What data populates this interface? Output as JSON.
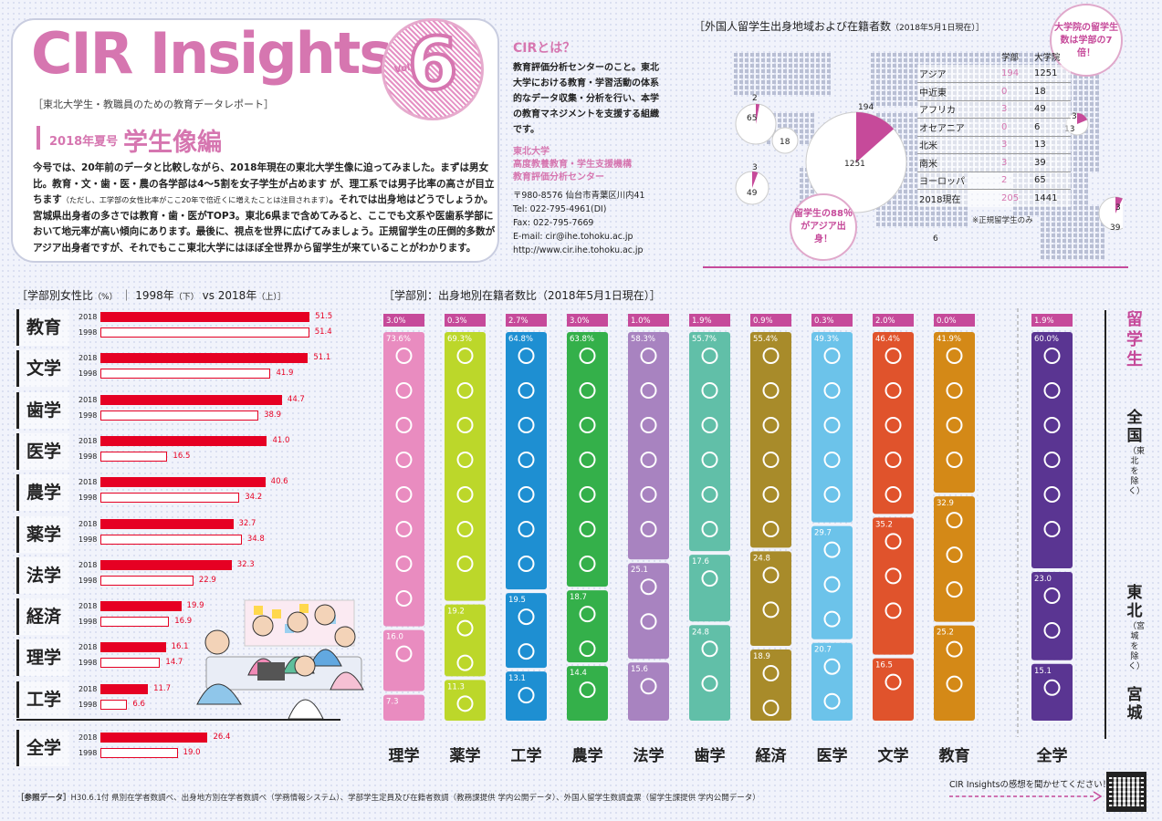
{
  "header": {
    "logo": "CIR Insights",
    "vol_label": "Vol.",
    "vol_number": "6",
    "subtitle": "［東北大学生・教職員のための教育データレポート］",
    "issue_label": "2018年夏号",
    "issue_title": "学生像編",
    "intro_1": "今号では、20年前のデータと比較しながら、2018年現在の東北大学生像に迫ってみました。まずは男女比。教育・文・歯・医・農の各学部は4〜5割を女子学生が占めます が、理工系では男子比率の高さが目立ちます",
    "intro_note": "（ただし、工学部の女性比率がここ20年で倍近くに増えたことは注目されます）",
    "intro_2": "。それでは出身地はどうでしょうか。宮城県出身者の多さでは教育・歯・医がTOP3。東北6県まで含めてみると、ここでも文系や医歯系学部において地元率が高い傾向にあります。最後に、視点を世界に広げてみましょう。正規留学生の圧倒的多数がアジア出身者ですが、それでもここ東北大学にはほぼ全世界から留学生が来ていることがわかります。"
  },
  "cir": {
    "title": "CIRとは？",
    "desc": "教育評価分析センターのこと。東北大学における教育・学習活動の体系的なデータ収集・分析を行い、本学の教育マネジメントを支援する組織です。",
    "org_1": "東北大学",
    "org_2": "高度教養教育・学生支援機構",
    "org_3": "教育評価分析センター",
    "address": "〒980-8576 仙台市青葉区川内41",
    "tel": "Tel: 022-795-4961(DI)",
    "fax": "Fax: 022-795-7669",
    "email": "E-mail: cir@ihe.tohoku.ac.jp",
    "url": "http://www.cir.ihe.tohoku.ac.jp"
  },
  "map": {
    "title": "［外国人留学生出身地域および在籍者数",
    "title_date": "（2018年5月1日現在）］",
    "col_undergrad": "学部",
    "col_grad": "大学院",
    "rows": [
      {
        "region": "アジア",
        "undergrad": "194",
        "grad": "1251"
      },
      {
        "region": "中近東",
        "undergrad": "0",
        "grad": "18"
      },
      {
        "region": "アフリカ",
        "undergrad": "3",
        "grad": "49"
      },
      {
        "region": "オセアニア",
        "undergrad": "0",
        "grad": "6"
      },
      {
        "region": "北米",
        "undergrad": "3",
        "grad": "13"
      },
      {
        "region": "南米",
        "undergrad": "3",
        "grad": "39"
      },
      {
        "region": "ヨーロッパ",
        "undergrad": "2",
        "grad": "65"
      },
      {
        "region": "2018現在",
        "undergrad": "205",
        "grad": "1441"
      }
    ],
    "note": "※正規留学生のみ",
    "bubble_grad": "大学院の留学生数は学部の7倍！",
    "bubble_asia": "留学生の88％がアジア出身！",
    "pie_labels": {
      "europe_u": "2",
      "europe_g": "65",
      "mideast_g": "18",
      "africa_u": "3",
      "africa_g": "49",
      "asia_u": "194",
      "asia_g": "1251",
      "oceania_g": "6",
      "namerica_u": "3",
      "namerica_g": "13",
      "samerica_u": "3",
      "samerica_g": "39"
    },
    "colors": {
      "undergrad": "#c64a9a",
      "grad": "#ffffff",
      "dots": "#b9bfd4"
    }
  },
  "female": {
    "title": "［学部別女性比",
    "title_unit": "（%）",
    "title_2": "｜ 1998年",
    "title_2_note": "（下）",
    "title_3": "vs 2018年",
    "title_3_note": "（上）］",
    "year_new": "2018",
    "year_old": "1998",
    "rows": [
      {
        "name": "教育",
        "v2018": 51.5,
        "v1998": 51.4
      },
      {
        "name": "文学",
        "v2018": 51.1,
        "v1998": 41.9
      },
      {
        "name": "歯学",
        "v2018": 44.7,
        "v1998": 38.9
      },
      {
        "name": "医学",
        "v2018": 41.0,
        "v1998": 16.5
      },
      {
        "name": "農学",
        "v2018": 40.6,
        "v1998": 34.2
      },
      {
        "name": "薬学",
        "v2018": 32.7,
        "v1998": 34.8
      },
      {
        "name": "法学",
        "v2018": 32.3,
        "v1998": 22.9
      },
      {
        "name": "経済",
        "v2018": 19.9,
        "v1998": 16.9
      },
      {
        "name": "理学",
        "v2018": 16.1,
        "v1998": 14.7
      },
      {
        "name": "工学",
        "v2018": 11.7,
        "v1998": 6.6
      }
    ],
    "total": {
      "name": "全学",
      "v2018": 26.4,
      "v1998": 19.0
    },
    "color": "#e60023"
  },
  "chart_data": {
    "type": "bar",
    "title": "［学部別：出身地別在籍者数比（2018年5月1日現在）］",
    "categories": [
      "理学",
      "薬学",
      "工学",
      "農学",
      "法学",
      "歯学",
      "経済",
      "医学",
      "文学",
      "教育",
      "全学"
    ],
    "series": [
      {
        "name": "留学生",
        "values": [
          3.0,
          0.3,
          2.7,
          3.0,
          1.0,
          1.9,
          0.9,
          0.3,
          2.0,
          0.0,
          1.9
        ]
      },
      {
        "name": "全国（東北を除く）",
        "values": [
          73.6,
          69.3,
          64.8,
          63.8,
          58.3,
          55.7,
          55.4,
          49.3,
          46.4,
          41.9,
          60.0
        ]
      },
      {
        "name": "東北（宮城を除く）",
        "values": [
          16.0,
          19.2,
          19.5,
          18.7,
          25.1,
          17.6,
          24.8,
          29.7,
          35.2,
          32.9,
          23.0
        ]
      },
      {
        "name": "宮城",
        "values": [
          7.3,
          11.3,
          13.1,
          14.4,
          15.6,
          24.8,
          18.9,
          20.7,
          16.5,
          25.2,
          15.1
        ]
      }
    ],
    "colors": [
      "#e98cc0",
      "#bcd72a",
      "#1e8fd2",
      "#34b04a",
      "#a883c0",
      "#61bfa8",
      "#a88b2a",
      "#6cc3ea",
      "#e0532c",
      "#d48917",
      "#5a3592"
    ],
    "abroad_color": "#c64a9a",
    "ylim": [
      0,
      100
    ]
  },
  "side": {
    "abroad": "留学生",
    "nation": "全国",
    "nation_sub": "（東北を除く）",
    "tohoku": "東北",
    "tohoku_sub": "（宮城を除く）",
    "miyagi": "宮城"
  },
  "footer": {
    "ref_label": "［参照データ］",
    "ref_text": "H30.6.1付 県別在学者数調べ、出身地方別在学者数調べ（学務情報システム）、学部学生定員及び在籍者数調（教務課提供 学内公開データ）、外国人留学生数調査票（留学生課提供 学内公開データ）",
    "feedback": "CIR Insightsの感想を聞かせてください！"
  }
}
